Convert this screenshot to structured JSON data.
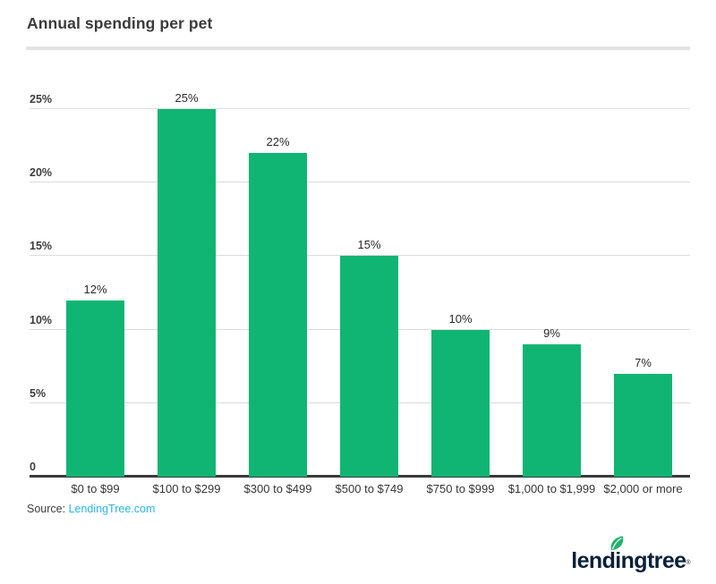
{
  "page": {
    "title": "Annual spending per pet"
  },
  "chart_data": {
    "type": "bar",
    "title": "Annual spending per pet",
    "categories": [
      "$0 to $99",
      "$100 to $299",
      "$300 to $499",
      "$500 to $749",
      "$750 to $999",
      "$1,000 to $1,999",
      "$2,000 or more"
    ],
    "values": [
      12,
      25,
      22,
      15,
      10,
      9,
      7
    ],
    "value_labels": [
      "12%",
      "25%",
      "22%",
      "15%",
      "10%",
      "9%",
      "7%"
    ],
    "y_ticks": [
      "0",
      "5%",
      "10%",
      "15%",
      "20%",
      "25%"
    ],
    "xlabel": "",
    "ylabel": "",
    "ylim": [
      0,
      25
    ],
    "grid": true,
    "legend": false,
    "bar_color": "#10b573"
  },
  "source": {
    "label": "Source: ",
    "link_text": "LendingTree.com"
  },
  "logo": {
    "text": "lendingtree",
    "registered_mark": "®"
  },
  "colors": {
    "bar_green": "#10b573",
    "link_blue": "#29b4e8",
    "logo_navy": "#0b2138",
    "leaf_green": "#22b26b",
    "gridline_gray": "#dcdcdc",
    "axis_dark": "#3a3a3a"
  }
}
